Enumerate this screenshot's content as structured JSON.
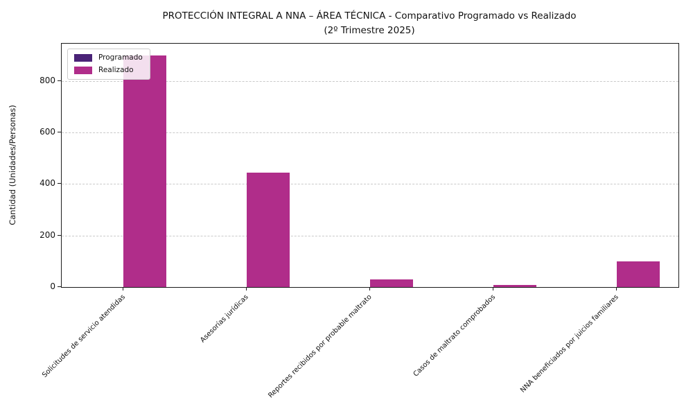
{
  "header": {
    "title_line1": "PROTECCIÓN INTEGRAL A NNA – ÁREA TÉCNICA - Comparativo Programado vs Realizado",
    "title_line2": "(2º Trimestre 2025)"
  },
  "chart_data": {
    "type": "bar",
    "title": "PROTECCIÓN INTEGRAL A NNA – ÁREA TÉCNICA - Comparativo Programado vs Realizado (2º Trimestre 2025)",
    "categories": [
      "Solicitudes de servicio atendidas",
      "Asesorías jurídicas",
      "Reportes recibidos por probable maltrato",
      "Casos de maltrato comprobados",
      "NNA beneficiados por juicios familiares"
    ],
    "series": [
      {
        "name": "Programado",
        "color": "#4a2377",
        "values": [
          0,
          0,
          0,
          0,
          0
        ]
      },
      {
        "name": "Realizado",
        "color": "#b02d8a",
        "values": [
          900,
          445,
          30,
          8,
          100
        ]
      }
    ],
    "xlabel": "",
    "ylabel": "Cantidad (Unidades/Personas)",
    "yticks": [
      0,
      200,
      400,
      600,
      800
    ],
    "ylim": [
      0,
      945
    ],
    "grid": "horizontal-dashed",
    "gridline_color": "#c9c9c9",
    "legend_position": "upper-left",
    "bar_width_fraction": 0.35
  }
}
